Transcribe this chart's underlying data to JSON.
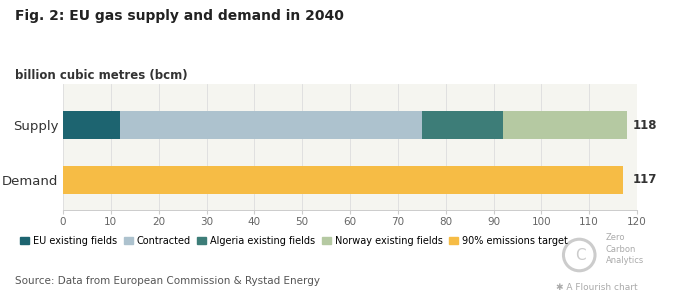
{
  "title": "Fig. 2: EU gas supply and demand in 2040",
  "ylabel_unit": "billion cubic metres (bcm)",
  "supply_segments": {
    "EU existing fields": 12,
    "Contracted": 63,
    "Algeria existing fields": 17,
    "Norway existing fields": 26
  },
  "demand_segments": {
    "90% emissions target": 117
  },
  "supply_total_label": "118",
  "demand_total_label": "117",
  "colors": {
    "EU existing fields": "#1d6470",
    "Contracted": "#adc2ce",
    "Algeria existing fields": "#3d7d78",
    "Norway existing fields": "#b5c9a2",
    "90% emissions target": "#f6bc45"
  },
  "xlim": [
    0,
    120
  ],
  "xticks": [
    0,
    10,
    20,
    30,
    40,
    50,
    60,
    70,
    80,
    90,
    100,
    110,
    120
  ],
  "source_text": "Source: Data from European Commission & Rystad Energy",
  "top_bg": "#ffffff",
  "bottom_bg": "#f5f5f0",
  "bar_height": 0.5
}
